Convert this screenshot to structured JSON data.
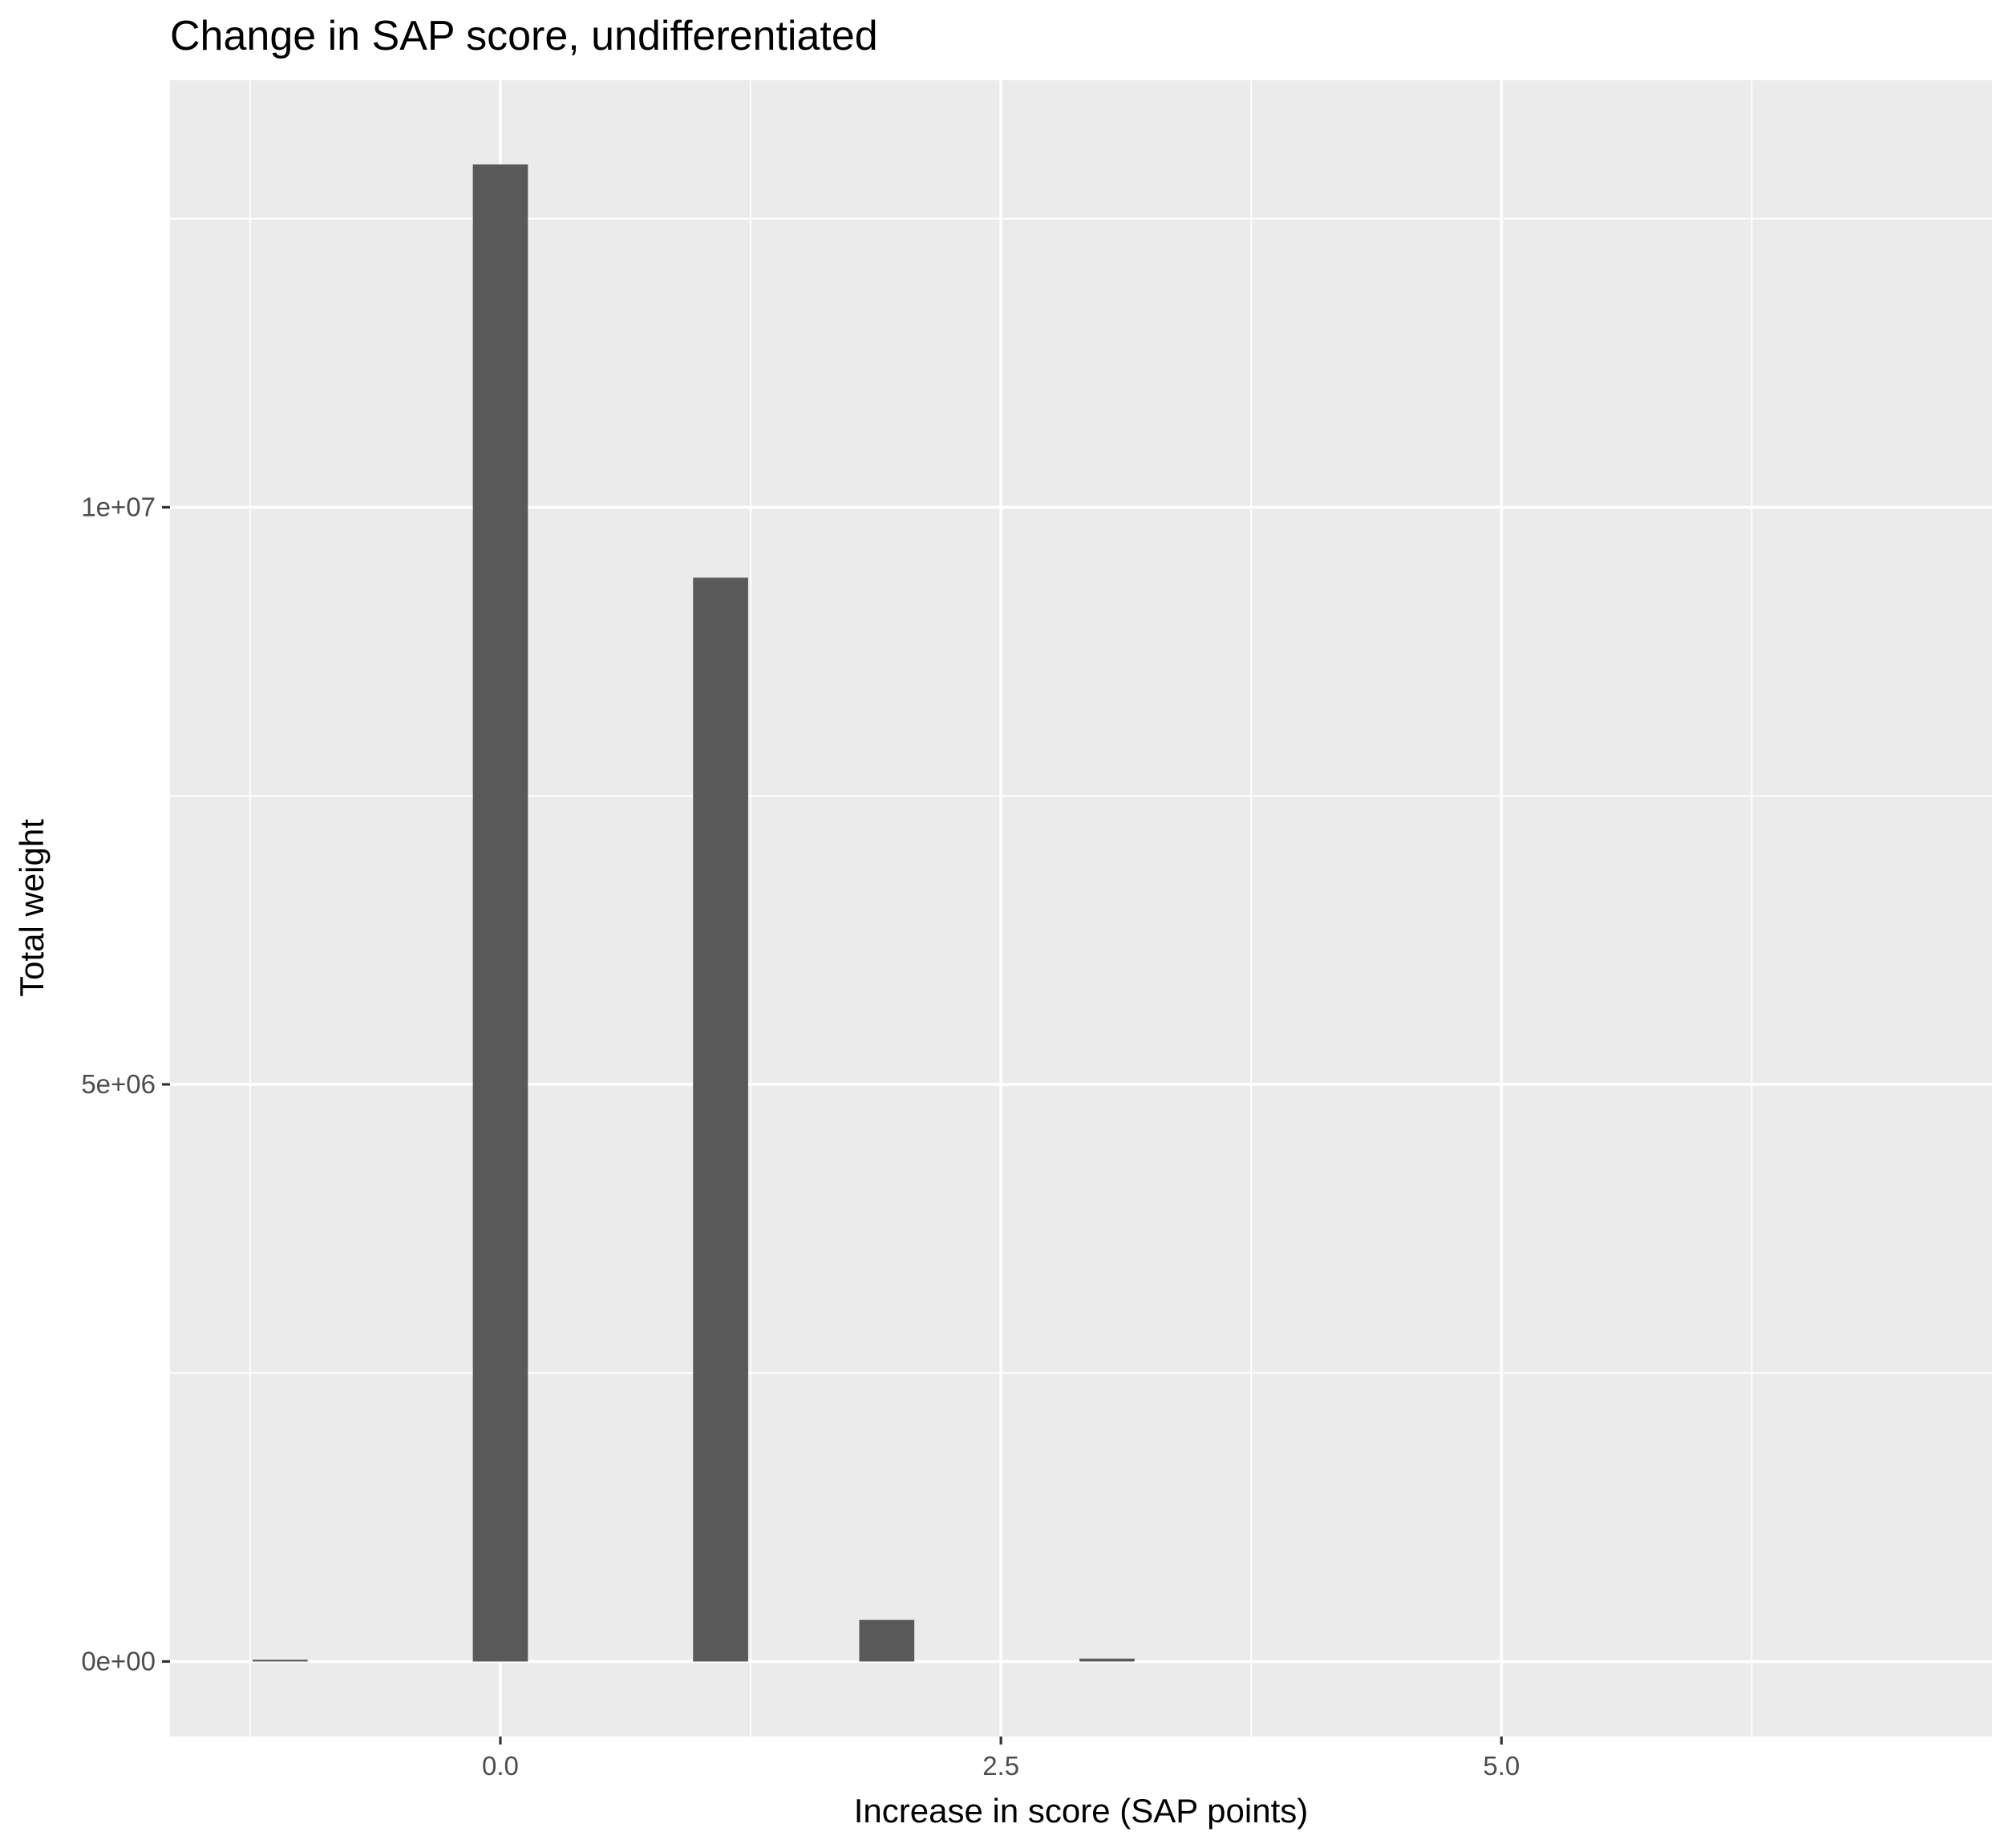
{
  "chart_data": {
    "type": "bar",
    "title": "Change in SAP score, undifferentiated",
    "xlabel": "Increase in score (SAP points)",
    "ylabel": "Total weight",
    "xlim": [
      -1.65,
      7.45
    ],
    "ylim": [
      -650000,
      13700000
    ],
    "x_ticks": [
      {
        "value": 0.0,
        "label": "0.0"
      },
      {
        "value": 2.5,
        "label": "2.5"
      },
      {
        "value": 5.0,
        "label": "5.0"
      }
    ],
    "x_minor_ticks": [
      -1.25,
      1.25,
      3.75,
      6.25
    ],
    "y_ticks": [
      {
        "value": 0,
        "label": "0e+00"
      },
      {
        "value": 5000000,
        "label": "5e+06"
      },
      {
        "value": 10000000,
        "label": "1e+07"
      }
    ],
    "y_minor_ticks": [
      2500000,
      7500000,
      12500000
    ],
    "bar_width": 0.275,
    "bars": [
      {
        "x": -1.1,
        "value": 15000
      },
      {
        "x": 0.0,
        "value": 12970000
      },
      {
        "x": 1.1,
        "value": 9390000
      },
      {
        "x": 1.93,
        "value": 360000
      },
      {
        "x": 3.03,
        "value": 25000
      }
    ],
    "panel_background": "#ebebeb",
    "bar_color": "#595959",
    "grid_color": "#ffffff"
  }
}
